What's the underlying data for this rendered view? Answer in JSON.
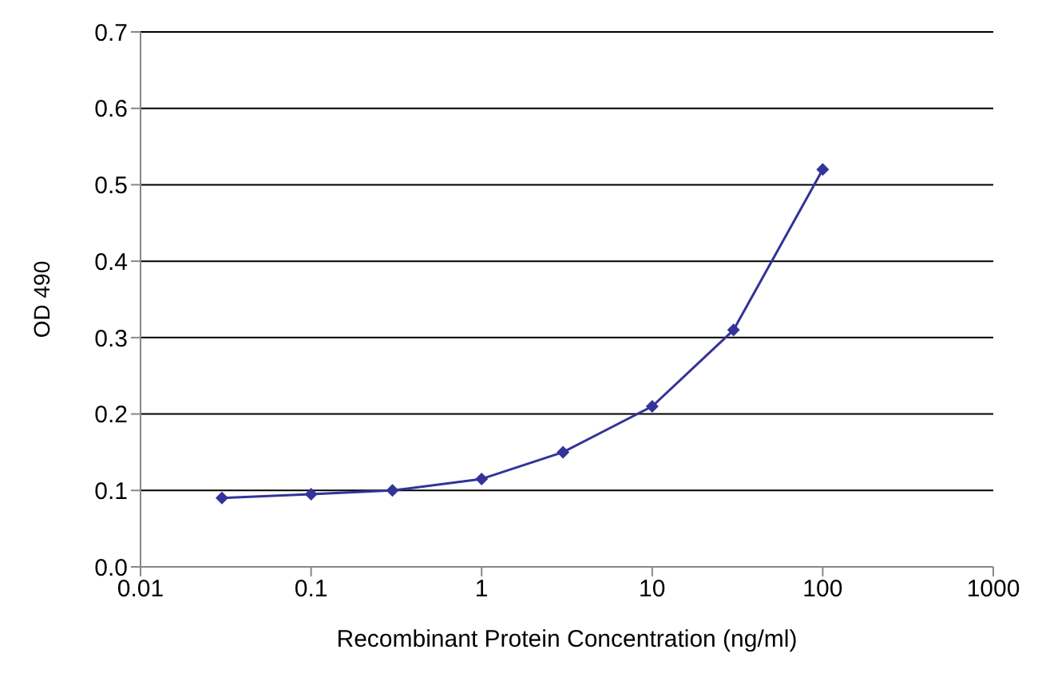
{
  "chart_data": {
    "type": "line",
    "xlabel": "Recombinant Protein Concentration (ng/ml)",
    "ylabel": "OD 490",
    "x": [
      0.03,
      0.1,
      0.3,
      1,
      3,
      10,
      30,
      100
    ],
    "series": [
      {
        "color": "#333399",
        "values": [
          0.09,
          0.095,
          0.1,
          0.115,
          0.15,
          0.21,
          0.31,
          0.52
        ]
      }
    ],
    "xlim": [
      0.01,
      1000
    ],
    "xticks": [
      0.01,
      0.1,
      1,
      10,
      100,
      1000
    ],
    "ylim": [
      0,
      0.7
    ],
    "yticks": [
      {
        "value": 0,
        "label": "0.0"
      },
      0.1,
      0.2,
      0.3,
      0.4,
      0.5,
      0.6,
      0.7
    ],
    "log": "x",
    "grid": "y",
    "marker": "diamond",
    "line_style": "solid",
    "legend": false
  }
}
